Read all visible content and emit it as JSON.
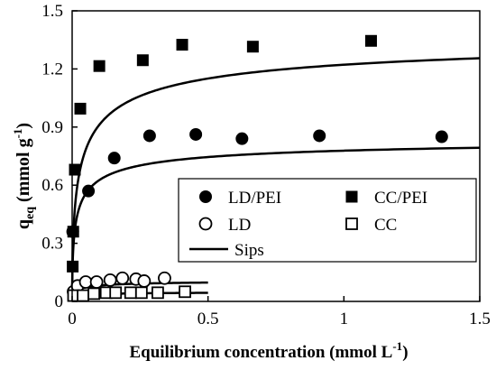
{
  "chart_data": {
    "type": "scatter",
    "xlabel": "Equilibrium concentration  (mmol L",
    "xlabel_sup": "-1",
    "xlabel_end": ")",
    "ylabel_main": "q",
    "ylabel_sub": "eq",
    "ylabel_unit": " (mmol  g",
    "ylabel_sup": "-1",
    "ylabel_end": ")",
    "xlim": [
      0,
      1.5
    ],
    "ylim": [
      0,
      1.5
    ],
    "x_ticks": [
      0,
      0.5,
      1,
      1.5
    ],
    "x_tick_labels": [
      "0",
      "0.5",
      "1",
      "1.5"
    ],
    "y_ticks": [
      0,
      0.3,
      0.6,
      0.9,
      1.2,
      1.5
    ],
    "y_tick_labels": [
      "0",
      "0.3",
      "0.6",
      "0.9",
      "1.2",
      "1.5"
    ],
    "grid": false,
    "legend_position": "lower-right",
    "series": [
      {
        "name": "LD/PEI",
        "marker": "filled-circle",
        "points": [
          [
            0.002,
            0.36
          ],
          [
            0.06,
            0.57
          ],
          [
            0.155,
            0.74
          ],
          [
            0.285,
            0.855
          ],
          [
            0.455,
            0.862
          ],
          [
            0.625,
            0.84
          ],
          [
            0.91,
            0.855
          ],
          [
            1.36,
            0.85
          ]
        ],
        "fit": {
          "qm": 0.86,
          "b": 60,
          "n": 0.55,
          "xmin": 0.001,
          "xmax": 1.5
        }
      },
      {
        "name": "CC/PEI",
        "marker": "filled-square",
        "points": [
          [
            0.002,
            0.18
          ],
          [
            0.004,
            0.36
          ],
          [
            0.01,
            0.68
          ],
          [
            0.03,
            0.995
          ],
          [
            0.1,
            1.215
          ],
          [
            0.26,
            1.245
          ],
          [
            0.405,
            1.325
          ],
          [
            0.665,
            1.315
          ],
          [
            1.1,
            1.345
          ]
        ],
        "fit": {
          "qm": 1.41,
          "b": 30,
          "n": 0.55,
          "xmin": 0.0005,
          "xmax": 1.5
        }
      },
      {
        "name": "LD",
        "marker": "open-circle",
        "points": [
          [
            0.005,
            0.05
          ],
          [
            0.02,
            0.08
          ],
          [
            0.05,
            0.1
          ],
          [
            0.09,
            0.1
          ],
          [
            0.14,
            0.11
          ],
          [
            0.185,
            0.12
          ],
          [
            0.235,
            0.115
          ],
          [
            0.265,
            0.105
          ],
          [
            0.34,
            0.12
          ]
        ],
        "fit": {
          "qm": 0.11,
          "b": 60,
          "n": 0.6,
          "xmin": 0.001,
          "xmax": 0.5
        }
      },
      {
        "name": "CC",
        "marker": "open-square",
        "points": [
          [
            0.005,
            0.03
          ],
          [
            0.04,
            0.03
          ],
          [
            0.08,
            0.04
          ],
          [
            0.125,
            0.045
          ],
          [
            0.16,
            0.045
          ],
          [
            0.215,
            0.045
          ],
          [
            0.255,
            0.045
          ],
          [
            0.315,
            0.045
          ],
          [
            0.415,
            0.05
          ]
        ],
        "fit": {
          "qm": 0.05,
          "b": 60,
          "n": 0.6,
          "xmin": 0.001,
          "xmax": 0.5
        }
      }
    ],
    "fit_legend_label": "Sips"
  }
}
